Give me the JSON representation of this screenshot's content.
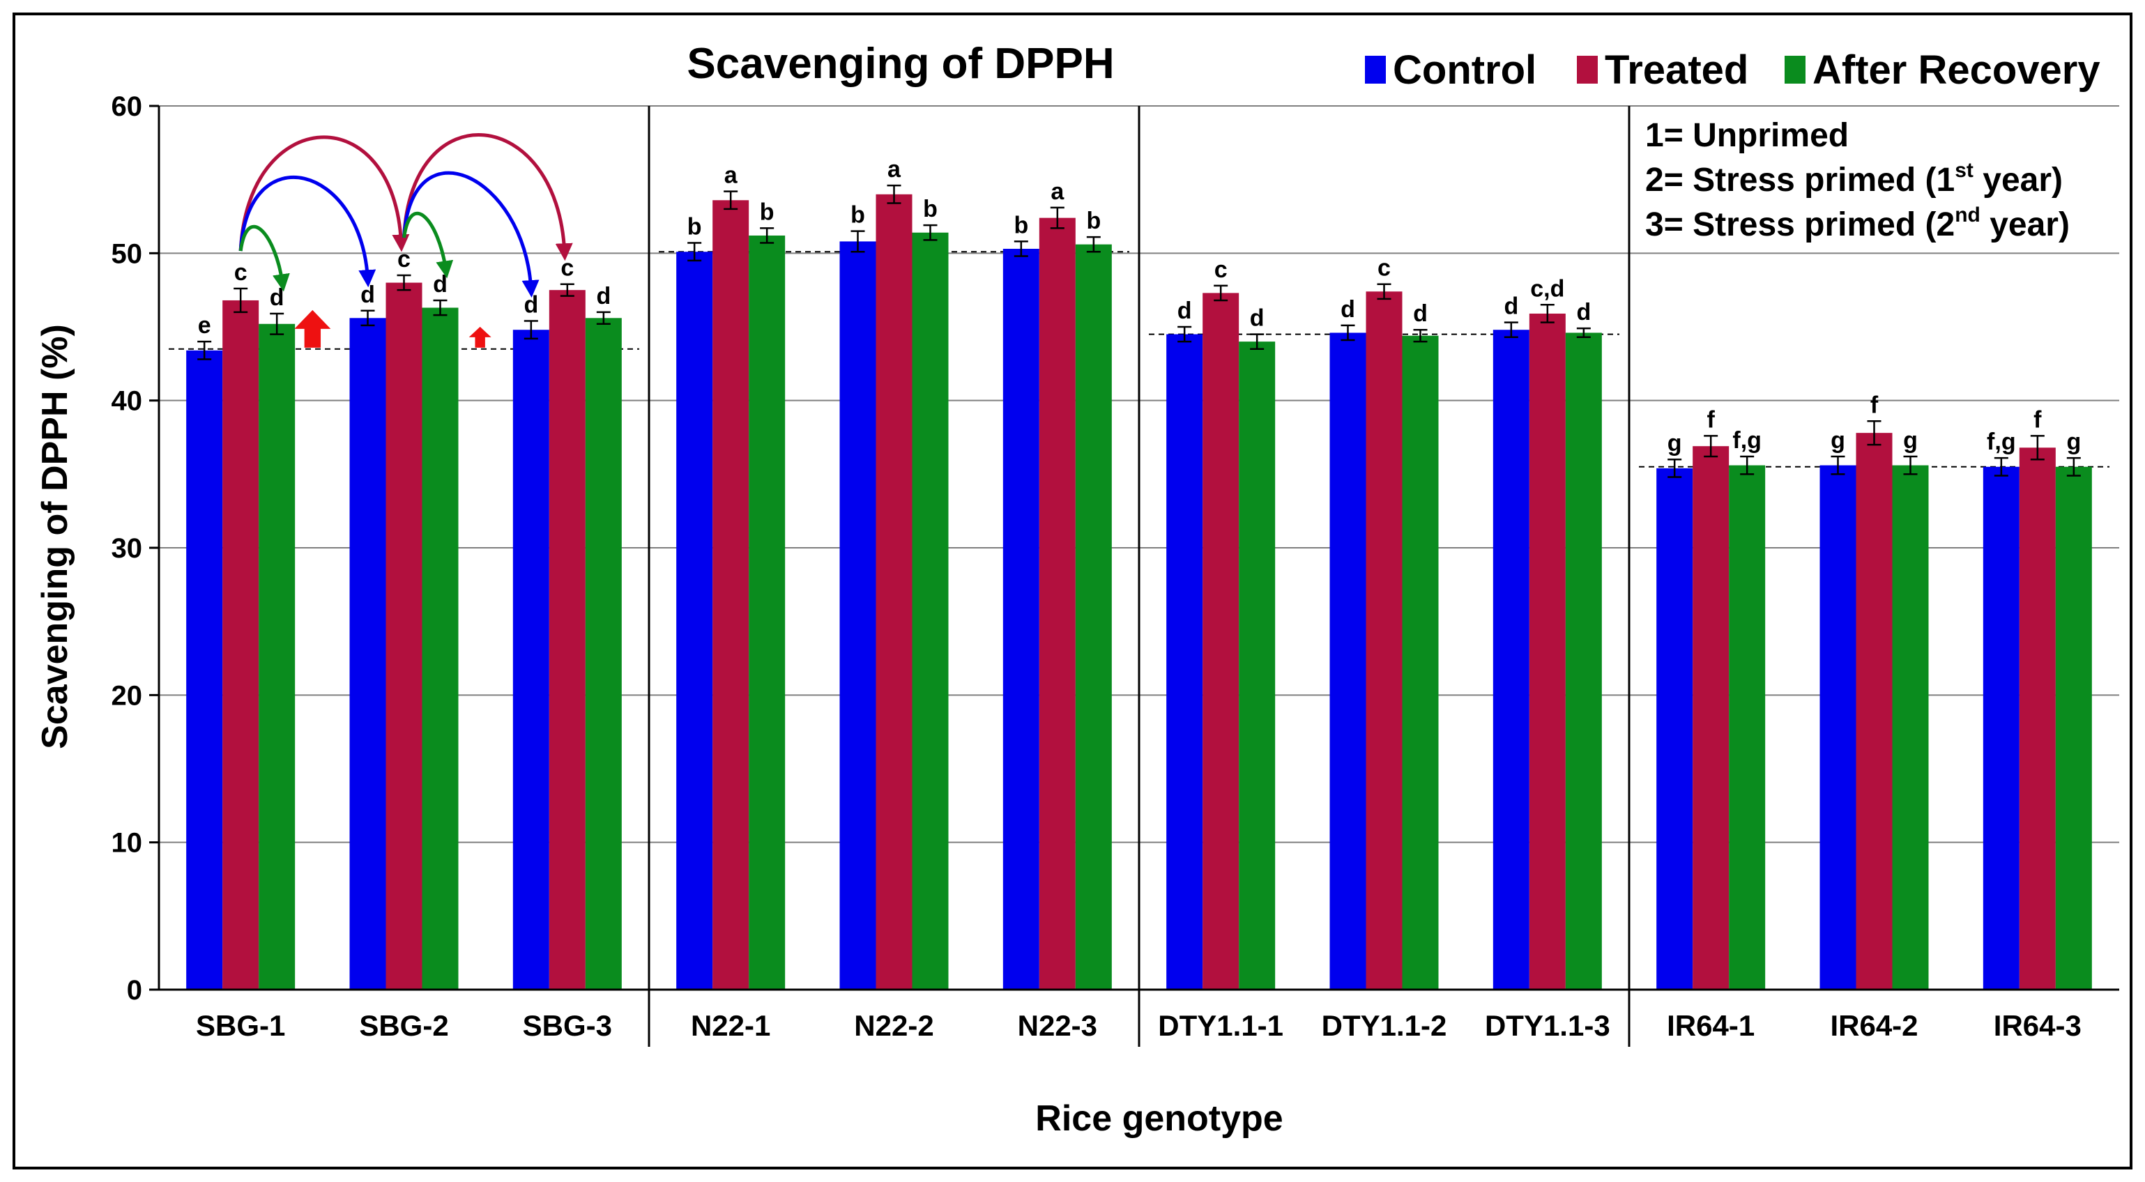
{
  "chart_data": {
    "type": "bar",
    "title": "Scavenging of DPPH",
    "xlabel": "Rice genotype",
    "ylabel": "Scavenging of DPPH  (%)",
    "ylim": [
      0,
      60
    ],
    "yticks": [
      0,
      10,
      20,
      30,
      40,
      50,
      60
    ],
    "grid": true,
    "legend_position": "top-right",
    "categories": [
      "SBG-1",
      "SBG-2",
      "SBG-3",
      "N22-1",
      "N22-2",
      "N22-3",
      "DTY1.1-1",
      "DTY1.1-2",
      "DTY1.1-3",
      "IR64-1",
      "IR64-2",
      "IR64-3"
    ],
    "groups": [
      {
        "name": "SBG",
        "members": [
          0,
          1,
          2
        ],
        "baseline": 43.5
      },
      {
        "name": "N22",
        "members": [
          3,
          4,
          5
        ],
        "baseline": 50.1
      },
      {
        "name": "DTY1.1",
        "members": [
          6,
          7,
          8
        ],
        "baseline": 44.5
      },
      {
        "name": "IR64",
        "members": [
          9,
          10,
          11
        ],
        "baseline": 35.5
      }
    ],
    "series": [
      {
        "name": "Control",
        "color": "#0000ee",
        "values": [
          43.4,
          45.6,
          44.8,
          50.1,
          50.8,
          50.3,
          44.5,
          44.6,
          44.8,
          35.4,
          35.6,
          35.5
        ],
        "errors": [
          0.6,
          0.5,
          0.6,
          0.6,
          0.7,
          0.5,
          0.5,
          0.5,
          0.5,
          0.6,
          0.6,
          0.6
        ],
        "letters": [
          "e",
          "d",
          "d",
          "b",
          "b",
          "b",
          "d",
          "d",
          "d",
          "g",
          "g",
          "f,g"
        ]
      },
      {
        "name": "Treated",
        "color": "#b2103e",
        "values": [
          46.8,
          48.0,
          47.5,
          53.6,
          54.0,
          52.4,
          47.3,
          47.4,
          45.9,
          36.9,
          37.8,
          36.8
        ],
        "errors": [
          0.8,
          0.5,
          0.4,
          0.6,
          0.6,
          0.7,
          0.5,
          0.5,
          0.6,
          0.7,
          0.8,
          0.8
        ],
        "letters": [
          "c",
          "c",
          "c",
          "a",
          "a",
          "a",
          "c",
          "c",
          "c,d",
          "f",
          "f",
          "f"
        ]
      },
      {
        "name": "After Recovery",
        "color": "#0a8c1e",
        "values": [
          45.2,
          46.3,
          45.6,
          51.2,
          51.4,
          50.6,
          44.0,
          44.4,
          44.6,
          35.6,
          35.6,
          35.5
        ],
        "errors": [
          0.7,
          0.5,
          0.4,
          0.5,
          0.5,
          0.5,
          0.5,
          0.4,
          0.3,
          0.6,
          0.6,
          0.6
        ],
        "letters": [
          "d",
          "d",
          "d",
          "b",
          "b",
          "b",
          "d",
          "d",
          "d",
          "f,g",
          "g",
          "g"
        ]
      }
    ],
    "legend": {
      "entries": [
        "Control",
        "Treated",
        "After Recovery"
      ],
      "notes": [
        {
          "prefix": "1= Unprimed",
          "sup": "",
          "suffix": ""
        },
        {
          "prefix": "2= Stress primed (1",
          "sup": "st",
          "suffix": " year)"
        },
        {
          "prefix": "3= Stress primed (2",
          "sup": "nd",
          "suffix": " year)"
        }
      ]
    }
  },
  "colors": {
    "control": "#0000ee",
    "treated": "#b2103e",
    "recovery": "#0a8c1e",
    "arrow_up": "#ee1111"
  }
}
